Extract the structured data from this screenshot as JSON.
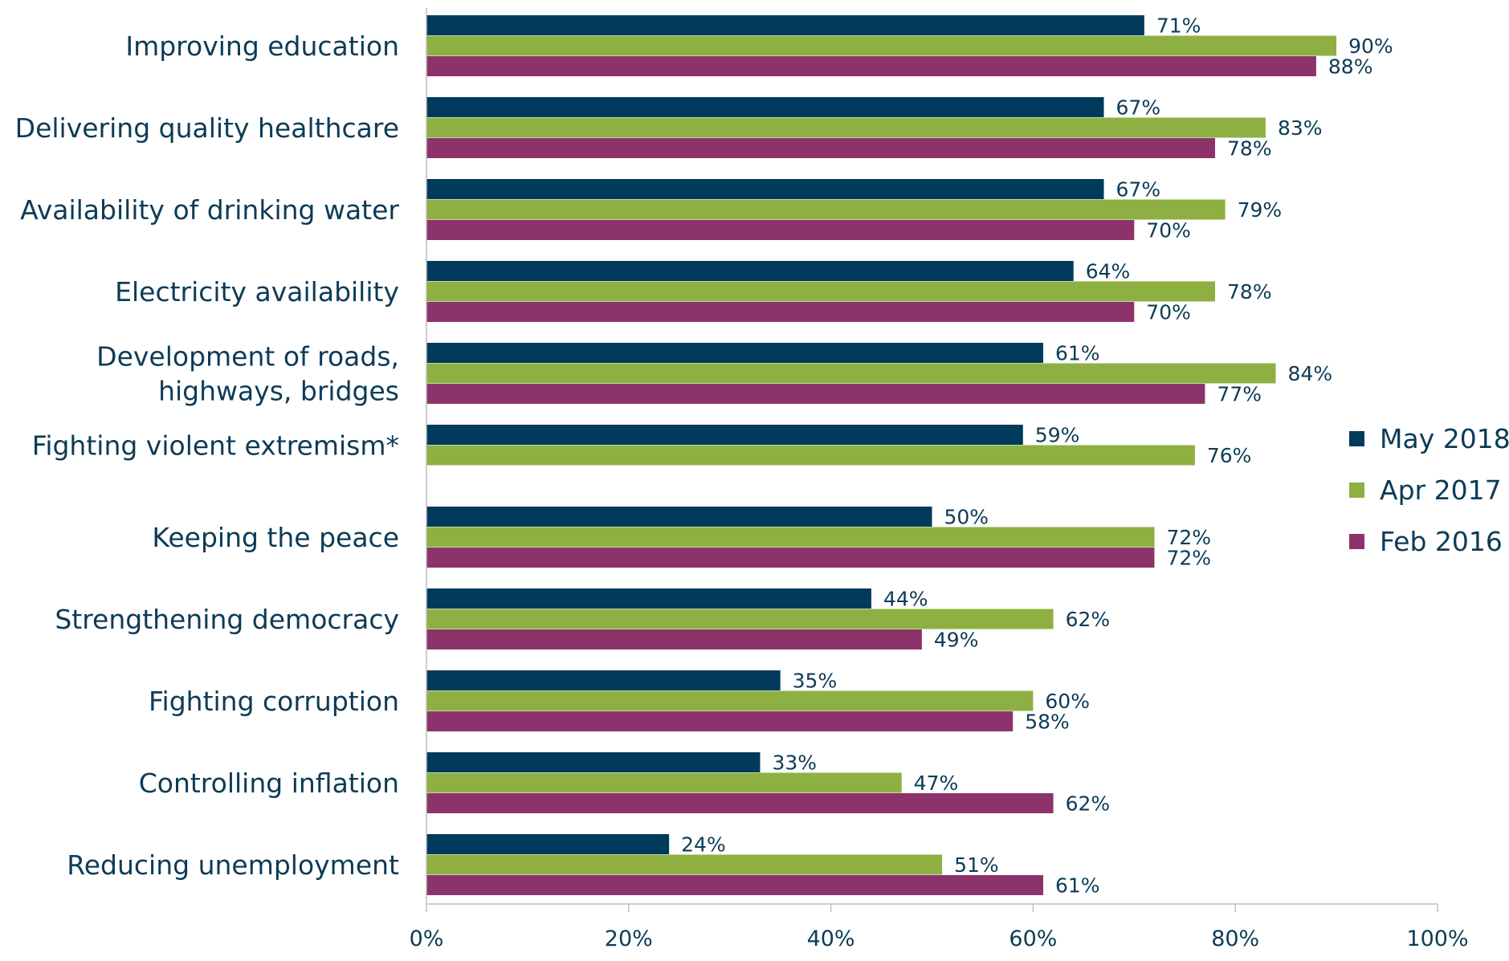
{
  "chart_data": {
    "type": "bar",
    "orientation": "horizontal",
    "categories": [
      [
        "Improving education"
      ],
      [
        "Delivering quality healthcare"
      ],
      [
        "Availability of drinking water"
      ],
      [
        "Electricity availability"
      ],
      [
        "Development of roads,",
        "highways, bridges"
      ],
      [
        "Fighting violent extremism*"
      ],
      [
        "Keeping the peace"
      ],
      [
        "Strengthening democracy"
      ],
      [
        "Fighting corruption"
      ],
      [
        "Controlling inflation"
      ],
      [
        "Reducing unemployment"
      ]
    ],
    "series": [
      {
        "name": "May 2018",
        "color": "#003a5c",
        "values": [
          71,
          67,
          67,
          64,
          61,
          59,
          50,
          44,
          35,
          33,
          24
        ]
      },
      {
        "name": "Apr 2017",
        "color": "#8eb043",
        "values": [
          90,
          83,
          79,
          78,
          84,
          76,
          72,
          62,
          60,
          47,
          51
        ]
      },
      {
        "name": "Feb 2016",
        "color": "#8c336b",
        "values": [
          88,
          78,
          70,
          70,
          77,
          null,
          72,
          49,
          58,
          62,
          61
        ]
      }
    ],
    "value_suffix": "%",
    "xlim": [
      0,
      100
    ],
    "xticks": [
      0,
      20,
      40,
      60,
      80,
      100
    ],
    "xtick_labels": [
      "0%",
      "20%",
      "40%",
      "60%",
      "80%",
      "100%"
    ],
    "grid": false,
    "legend_position": "right"
  }
}
